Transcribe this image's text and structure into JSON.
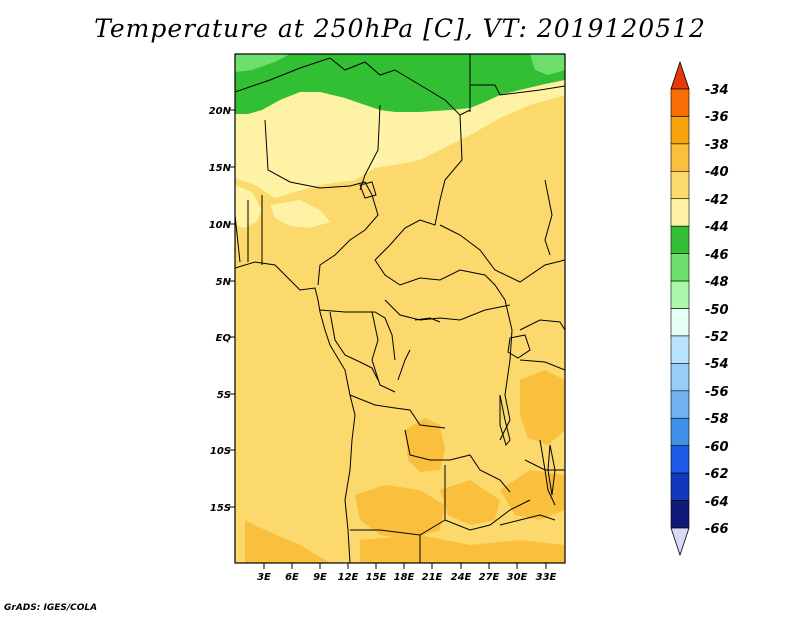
{
  "title": "Temperature at 250hPa [C], VT: 2019120512",
  "footer": "GrADS: IGES/COLA",
  "map": {
    "lat_labels": [
      "20N",
      "15N",
      "10N",
      "5N",
      "EQ",
      "5S",
      "10S",
      "15S"
    ],
    "lon_labels": [
      "3E",
      "6E",
      "9E",
      "12E",
      "15E",
      "18E",
      "21E",
      "24E",
      "27E",
      "30E",
      "33E"
    ]
  },
  "colorbar": {
    "labels": [
      "-34",
      "-36",
      "-38",
      "-40",
      "-42",
      "-44",
      "-46",
      "-48",
      "-50",
      "-52",
      "-54",
      "-56",
      "-58",
      "-60",
      "-62",
      "-64",
      "-66"
    ],
    "colors": [
      "#e83a06",
      "#f86f05",
      "#f9a30a",
      "#fbbf3e",
      "#fbd96d",
      "#fef3a5",
      "#33bf33",
      "#6ddf6d",
      "#aaf7aa",
      "#e4fff4",
      "#b8e4fb",
      "#98cdf7",
      "#70b2f1",
      "#4191ea",
      "#1b5ae6",
      "#1238bd",
      "#0f1a78",
      "#d9d9f5"
    ]
  },
  "colors": {
    "field_main": "#fbd96d",
    "field_warm": "#fbbf3e",
    "field_cool": "#fef3a5",
    "field_green": "#33bf33",
    "field_lightgreen": "#6ddf6d"
  }
}
